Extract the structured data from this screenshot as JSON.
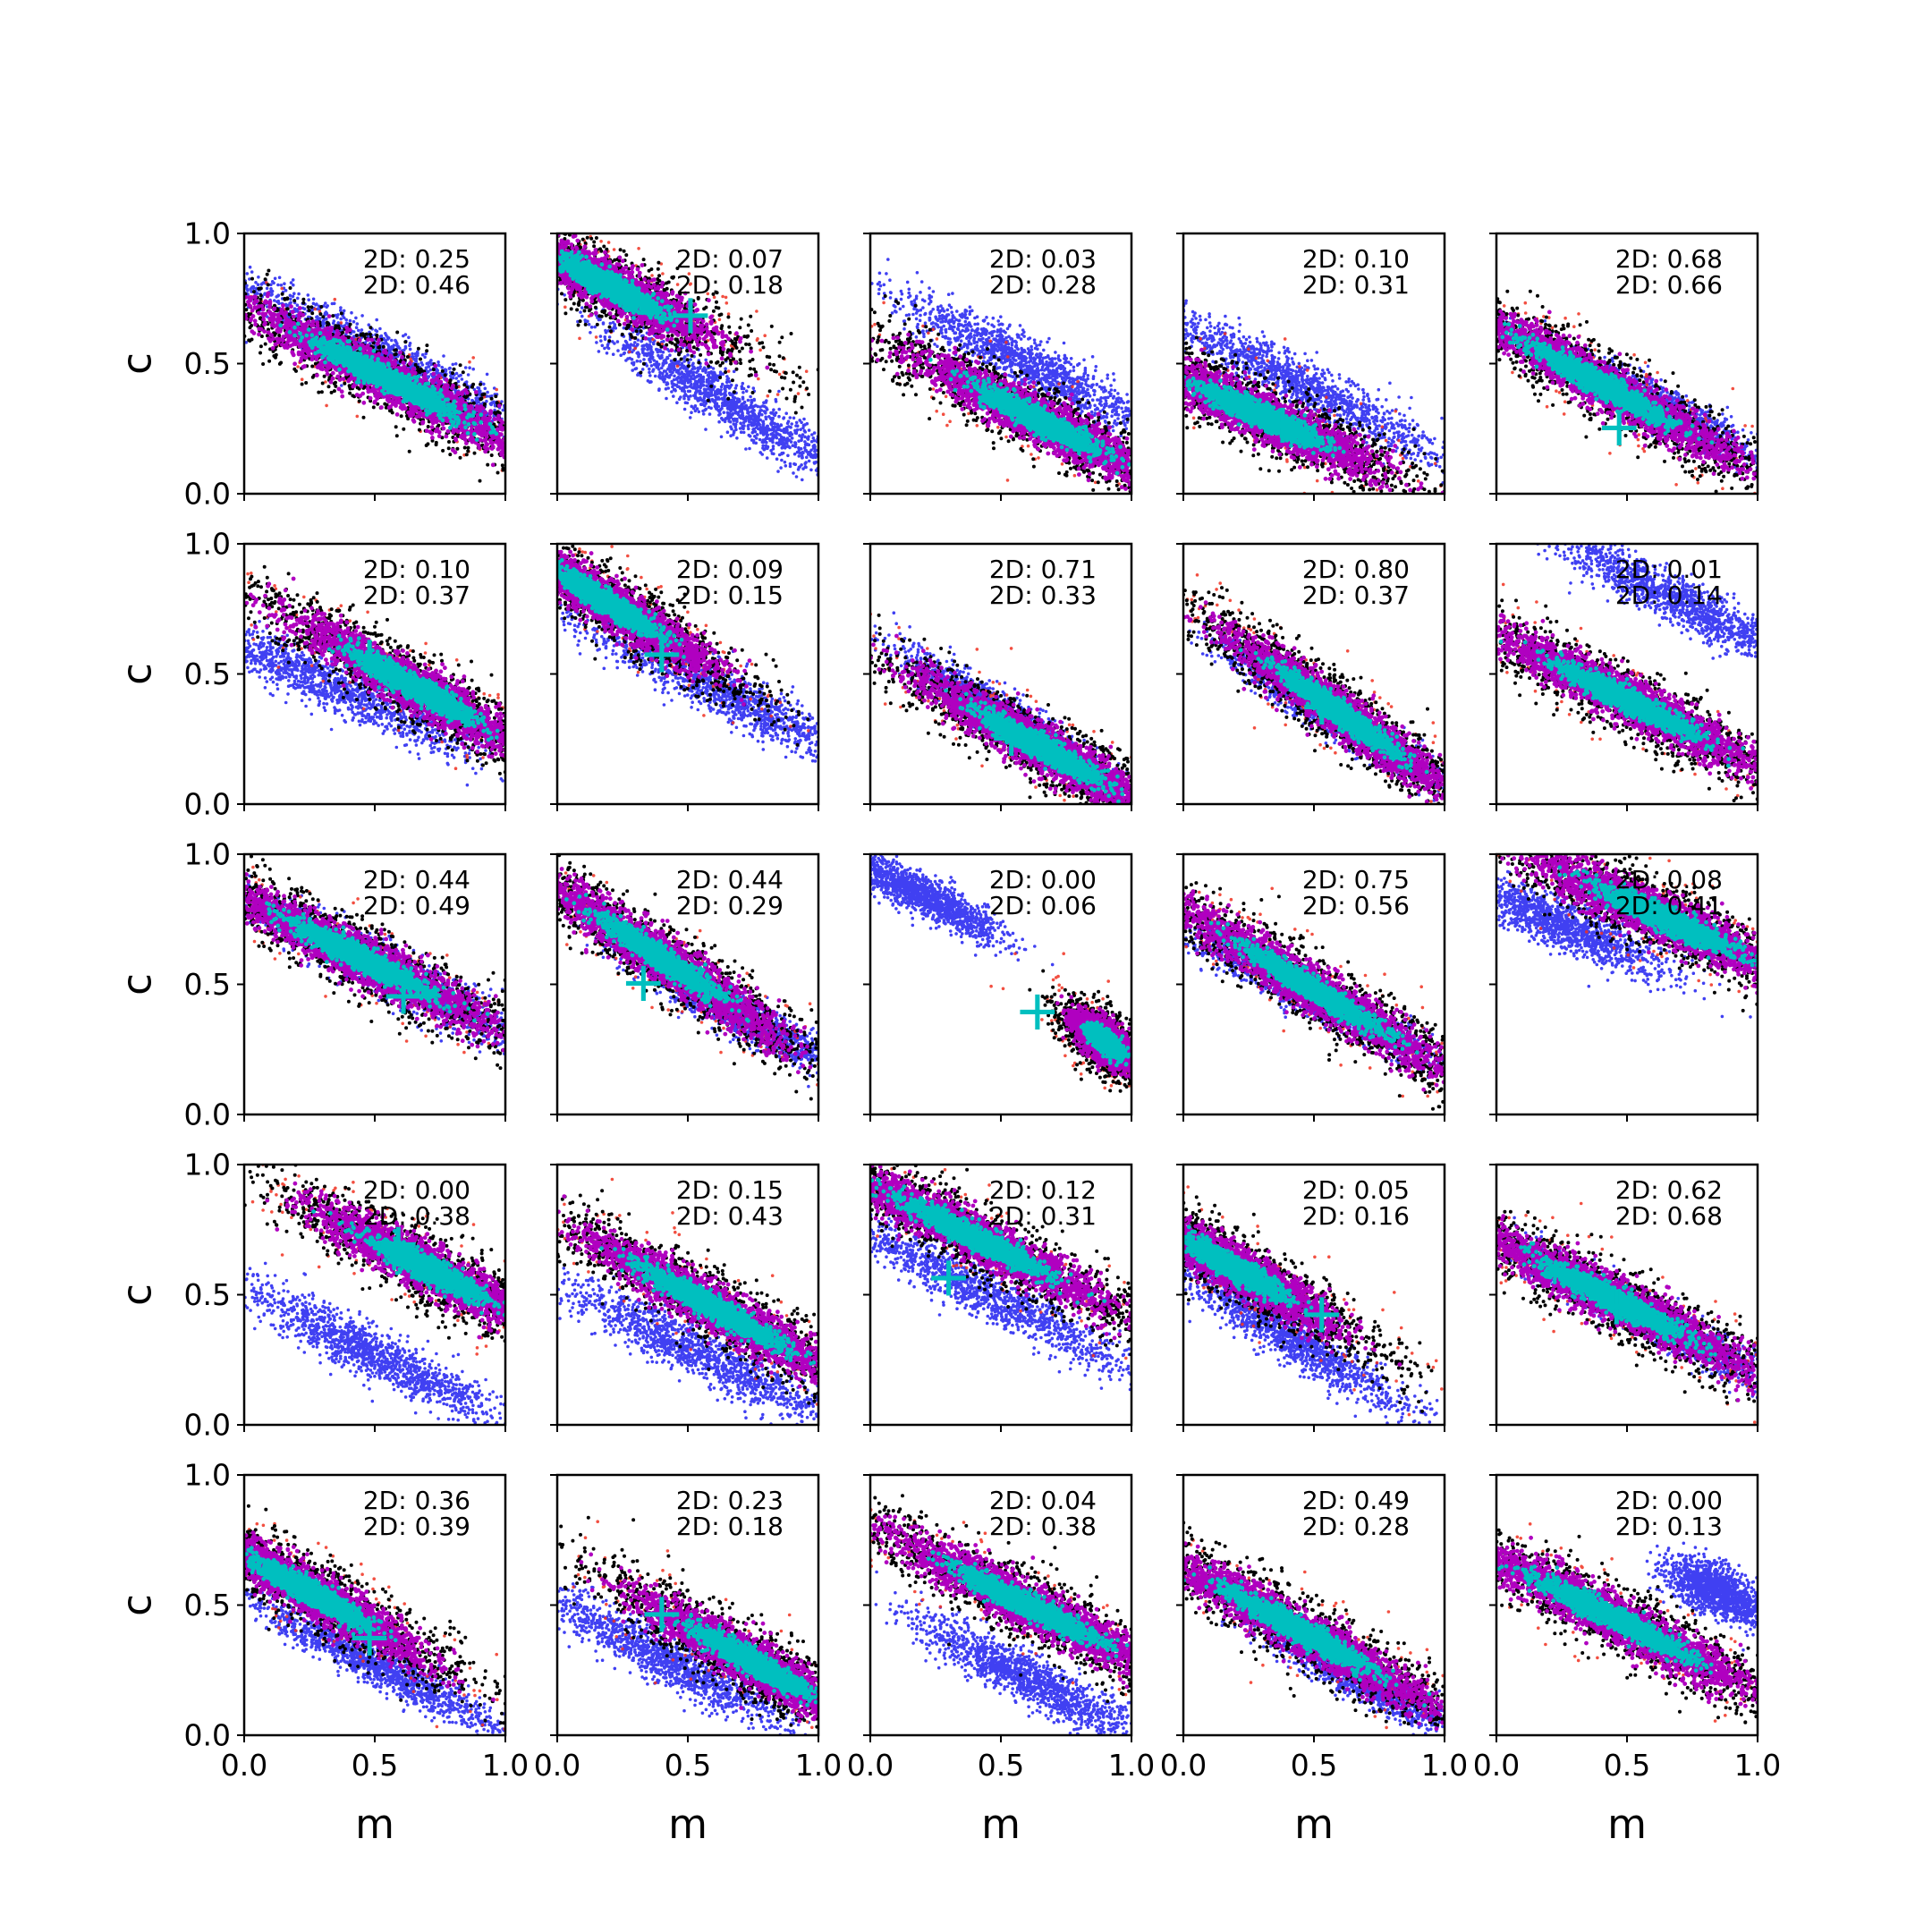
{
  "chart_data": {
    "type": "scatter",
    "layout": "5x5 grid of scatter plots",
    "xlabel": "m",
    "ylabel": "c",
    "xlim": [
      0.0,
      1.0
    ],
    "ylim": [
      0.0,
      1.0
    ],
    "xticks": [
      "0.0",
      "0.5",
      "1.0"
    ],
    "yticks": [
      "0.0",
      "0.5",
      "1.0"
    ],
    "marker_label": "+",
    "colors": {
      "blue": "#1f1ff0",
      "red": "#f03020",
      "black": "#000000",
      "magenta": "#b000c0",
      "cyan": "#00bfbf",
      "marker": "#00bfbf"
    },
    "panels": [
      {
        "annot1": "2D: 0.25",
        "annot2": "2D: 0.46",
        "blue": {
          "cx": 0.55,
          "cy": 0.52,
          "sx": 0.35,
          "sy": 0.05,
          "slope": -0.5
        },
        "main": {
          "cx": 0.55,
          "cy": 0.44,
          "sx": 0.35,
          "sy": 0.06,
          "slope": -0.5
        },
        "marker": null
      },
      {
        "annot1": "2D: 0.07",
        "annot2": "2D: 0.18",
        "blue": {
          "cx": 0.65,
          "cy": 0.35,
          "sx": 0.25,
          "sy": 0.05,
          "slope": -0.6
        },
        "main": {
          "cx": 0.2,
          "cy": 0.8,
          "sx": 0.25,
          "sy": 0.06,
          "slope": -0.5
        },
        "marker": {
          "m": 0.51,
          "c": 0.69
        }
      },
      {
        "annot1": "2D: 0.03",
        "annot2": "2D: 0.28",
        "blue": {
          "cx": 0.6,
          "cy": 0.5,
          "sx": 0.25,
          "sy": 0.05,
          "slope": -0.5
        },
        "main": {
          "cx": 0.65,
          "cy": 0.28,
          "sx": 0.3,
          "sy": 0.06,
          "slope": -0.5
        },
        "marker": null
      },
      {
        "annot1": "2D: 0.10",
        "annot2": "2D: 0.31",
        "blue": {
          "cx": 0.45,
          "cy": 0.42,
          "sx": 0.3,
          "sy": 0.05,
          "slope": -0.5
        },
        "main": {
          "cx": 0.3,
          "cy": 0.3,
          "sx": 0.3,
          "sy": 0.06,
          "slope": -0.45
        },
        "marker": {
          "m": 0.38,
          "c": 0.27
        }
      },
      {
        "annot1": "2D: 0.68",
        "annot2": "2D: 0.66",
        "blue": {
          "cx": 0.6,
          "cy": 0.35,
          "sx": 0.2,
          "sy": 0.04,
          "slope": -0.5
        },
        "main": {
          "cx": 0.4,
          "cy": 0.42,
          "sx": 0.35,
          "sy": 0.06,
          "slope": -0.55
        },
        "marker": {
          "m": 0.47,
          "c": 0.26
        }
      },
      {
        "annot1": "2D: 0.10",
        "annot2": "2D: 0.37",
        "blue": {
          "cx": 0.3,
          "cy": 0.47,
          "sx": 0.3,
          "sy": 0.05,
          "slope": -0.45
        },
        "main": {
          "cx": 0.65,
          "cy": 0.45,
          "sx": 0.3,
          "sy": 0.06,
          "slope": -0.55
        },
        "marker": {
          "m": 0.48,
          "c": 0.57
        }
      },
      {
        "annot1": "2D: 0.09",
        "annot2": "2D: 0.15",
        "blue": {
          "cx": 0.65,
          "cy": 0.42,
          "sx": 0.3,
          "sy": 0.05,
          "slope": -0.5
        },
        "main": {
          "cx": 0.2,
          "cy": 0.77,
          "sx": 0.25,
          "sy": 0.06,
          "slope": -0.6
        },
        "marker": {
          "m": 0.4,
          "c": 0.58
        }
      },
      {
        "annot1": "2D: 0.71",
        "annot2": "2D: 0.33",
        "blue": {
          "cx": 0.5,
          "cy": 0.35,
          "sx": 0.2,
          "sy": 0.04,
          "slope": -0.6
        },
        "main": {
          "cx": 0.65,
          "cy": 0.22,
          "sx": 0.3,
          "sy": 0.06,
          "slope": -0.55
        },
        "marker": {
          "m": 0.54,
          "c": 0.26
        }
      },
      {
        "annot1": "2D: 0.80",
        "annot2": "2D: 0.37",
        "blue": {
          "cx": 0.55,
          "cy": 0.35,
          "sx": 0.2,
          "sy": 0.04,
          "slope": -0.6
        },
        "main": {
          "cx": 0.6,
          "cy": 0.35,
          "sx": 0.28,
          "sy": 0.06,
          "slope": -0.7
        },
        "marker": {
          "m": 0.53,
          "c": 0.38
        }
      },
      {
        "annot1": "2D: 0.01",
        "annot2": "2D: 0.14",
        "blue": {
          "cx": 0.7,
          "cy": 0.78,
          "sx": 0.25,
          "sy": 0.05,
          "slope": -0.5
        },
        "main": {
          "cx": 0.5,
          "cy": 0.4,
          "sx": 0.35,
          "sy": 0.06,
          "slope": -0.5
        },
        "marker": null
      },
      {
        "annot1": "2D: 0.44",
        "annot2": "2D: 0.49",
        "blue": {
          "cx": 0.55,
          "cy": 0.55,
          "sx": 0.3,
          "sy": 0.05,
          "slope": -0.5
        },
        "main": {
          "cx": 0.45,
          "cy": 0.6,
          "sx": 0.35,
          "sy": 0.06,
          "slope": -0.5
        },
        "marker": {
          "m": 0.61,
          "c": 0.46
        }
      },
      {
        "annot1": "2D: 0.44",
        "annot2": "2D: 0.29",
        "blue": {
          "cx": 0.7,
          "cy": 0.38,
          "sx": 0.2,
          "sy": 0.04,
          "slope": -0.5
        },
        "main": {
          "cx": 0.4,
          "cy": 0.6,
          "sx": 0.3,
          "sy": 0.06,
          "slope": -0.65
        },
        "marker": {
          "m": 0.33,
          "c": 0.51
        }
      },
      {
        "annot1": "2D: 0.00",
        "annot2": "2D: 0.06",
        "blue": {
          "cx": 0.2,
          "cy": 0.84,
          "sx": 0.15,
          "sy": 0.04,
          "slope": -0.5
        },
        "main": {
          "cx": 0.9,
          "cy": 0.28,
          "sx": 0.08,
          "sy": 0.05,
          "slope": -0.6
        },
        "marker": {
          "m": 0.64,
          "c": 0.4
        }
      },
      {
        "annot1": "2D: 0.75",
        "annot2": "2D: 0.56",
        "blue": {
          "cx": 0.5,
          "cy": 0.45,
          "sx": 0.25,
          "sy": 0.04,
          "slope": -0.5
        },
        "main": {
          "cx": 0.5,
          "cy": 0.48,
          "sx": 0.35,
          "sy": 0.06,
          "slope": -0.6
        },
        "marker": null
      },
      {
        "annot1": "2D: 0.08",
        "annot2": "2D: 0.41",
        "blue": {
          "cx": 0.25,
          "cy": 0.73,
          "sx": 0.2,
          "sy": 0.05,
          "slope": -0.4
        },
        "main": {
          "cx": 0.65,
          "cy": 0.75,
          "sx": 0.35,
          "sy": 0.06,
          "slope": -0.45
        },
        "marker": null
      },
      {
        "annot1": "2D: 0.00",
        "annot2": "2D: 0.38",
        "blue": {
          "cx": 0.5,
          "cy": 0.27,
          "sx": 0.25,
          "sy": 0.05,
          "slope": -0.5
        },
        "main": {
          "cx": 0.7,
          "cy": 0.6,
          "sx": 0.28,
          "sy": 0.06,
          "slope": -0.5
        },
        "marker": {
          "m": 0.59,
          "c": 0.7
        }
      },
      {
        "annot1": "2D: 0.15",
        "annot2": "2D: 0.43",
        "blue": {
          "cx": 0.55,
          "cy": 0.27,
          "sx": 0.3,
          "sy": 0.05,
          "slope": -0.5
        },
        "main": {
          "cx": 0.6,
          "cy": 0.45,
          "sx": 0.35,
          "sy": 0.06,
          "slope": -0.55
        },
        "marker": null
      },
      {
        "annot1": "2D: 0.12",
        "annot2": "2D: 0.31",
        "blue": {
          "cx": 0.45,
          "cy": 0.5,
          "sx": 0.3,
          "sy": 0.05,
          "slope": -0.5
        },
        "main": {
          "cx": 0.4,
          "cy": 0.72,
          "sx": 0.35,
          "sy": 0.06,
          "slope": -0.5
        },
        "marker": {
          "m": 0.3,
          "c": 0.57
        }
      },
      {
        "annot1": "2D: 0.05",
        "annot2": "2D: 0.16",
        "blue": {
          "cx": 0.4,
          "cy": 0.34,
          "sx": 0.25,
          "sy": 0.05,
          "slope": -0.6
        },
        "main": {
          "cx": 0.2,
          "cy": 0.6,
          "sx": 0.25,
          "sy": 0.06,
          "slope": -0.55
        },
        "marker": {
          "m": 0.53,
          "c": 0.43
        }
      },
      {
        "annot1": "2D: 0.62",
        "annot2": "2D: 0.68",
        "blue": {
          "cx": 0.6,
          "cy": 0.4,
          "sx": 0.25,
          "sy": 0.04,
          "slope": -0.5
        },
        "main": {
          "cx": 0.45,
          "cy": 0.48,
          "sx": 0.35,
          "sy": 0.06,
          "slope": -0.5
        },
        "marker": {
          "m": 0.46,
          "c": 0.46
        }
      },
      {
        "annot1": "2D: 0.36",
        "annot2": "2D: 0.39",
        "blue": {
          "cx": 0.5,
          "cy": 0.27,
          "sx": 0.25,
          "sy": 0.04,
          "slope": -0.5
        },
        "main": {
          "cx": 0.25,
          "cy": 0.55,
          "sx": 0.28,
          "sy": 0.06,
          "slope": -0.55
        },
        "marker": {
          "m": 0.48,
          "c": 0.38
        }
      },
      {
        "annot1": "2D: 0.23",
        "annot2": "2D: 0.18",
        "blue": {
          "cx": 0.4,
          "cy": 0.3,
          "sx": 0.25,
          "sy": 0.05,
          "slope": -0.5
        },
        "main": {
          "cx": 0.75,
          "cy": 0.28,
          "sx": 0.28,
          "sy": 0.06,
          "slope": -0.55
        },
        "marker": {
          "m": 0.4,
          "c": 0.47
        }
      },
      {
        "annot1": "2D: 0.04",
        "annot2": "2D: 0.38",
        "blue": {
          "cx": 0.6,
          "cy": 0.22,
          "sx": 0.22,
          "sy": 0.05,
          "slope": -0.5
        },
        "main": {
          "cx": 0.6,
          "cy": 0.5,
          "sx": 0.35,
          "sy": 0.06,
          "slope": -0.5
        },
        "marker": null
      },
      {
        "annot1": "2D: 0.49",
        "annot2": "2D: 0.28",
        "blue": {
          "cx": 0.7,
          "cy": 0.2,
          "sx": 0.2,
          "sy": 0.04,
          "slope": -0.5
        },
        "main": {
          "cx": 0.45,
          "cy": 0.4,
          "sx": 0.35,
          "sy": 0.06,
          "slope": -0.55
        },
        "marker": null
      },
      {
        "annot1": "2D: 0.00",
        "annot2": "2D: 0.13",
        "blue": {
          "cx": 0.85,
          "cy": 0.55,
          "sx": 0.1,
          "sy": 0.05,
          "slope": -0.4
        },
        "main": {
          "cx": 0.45,
          "cy": 0.45,
          "sx": 0.38,
          "sy": 0.06,
          "slope": -0.5
        },
        "marker": null
      }
    ]
  }
}
